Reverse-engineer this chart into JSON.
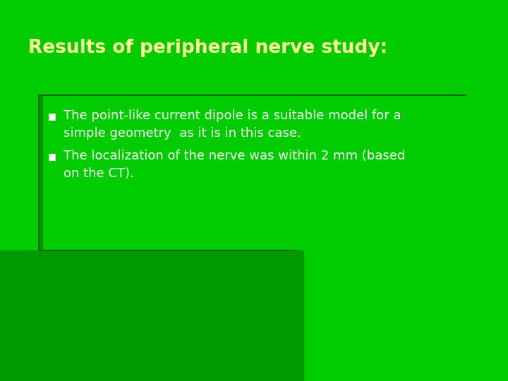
{
  "background_color": "#00cc00",
  "darker_panel_color": "#009900",
  "title": "Results of peripheral nerve study:",
  "title_color": "#ffff99",
  "title_fontsize": 19,
  "bullet_color": "#ffffff",
  "bullet_fontsize": 13,
  "bullet1_line1": "The point-like current dipole is a suitable model for a",
  "bullet1_line2": "simple geometry  as it is in this case.",
  "bullet2_line1": "The localization of the nerve was within 2 mm (based",
  "bullet2_line2": "on the CT).",
  "line_color": "#006600"
}
